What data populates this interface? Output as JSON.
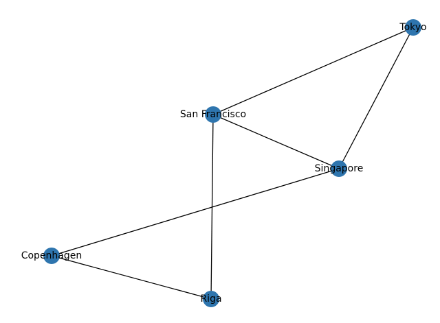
{
  "graph": {
    "node_color": "#2e75ae",
    "edge_color": "#000000",
    "nodes": [
      {
        "id": "tokyo",
        "label": "Tokyo"
      },
      {
        "id": "san-francisco",
        "label": "San Francisco"
      },
      {
        "id": "singapore",
        "label": "Singapore"
      },
      {
        "id": "copenhagen",
        "label": "Copenhagen"
      },
      {
        "id": "riga",
        "label": "Riga"
      }
    ],
    "edges": [
      {
        "source": "tokyo",
        "target": "san-francisco"
      },
      {
        "source": "tokyo",
        "target": "singapore"
      },
      {
        "source": "san-francisco",
        "target": "singapore"
      },
      {
        "source": "san-francisco",
        "target": "riga"
      },
      {
        "source": "singapore",
        "target": "copenhagen"
      },
      {
        "source": "copenhagen",
        "target": "riga"
      }
    ]
  }
}
